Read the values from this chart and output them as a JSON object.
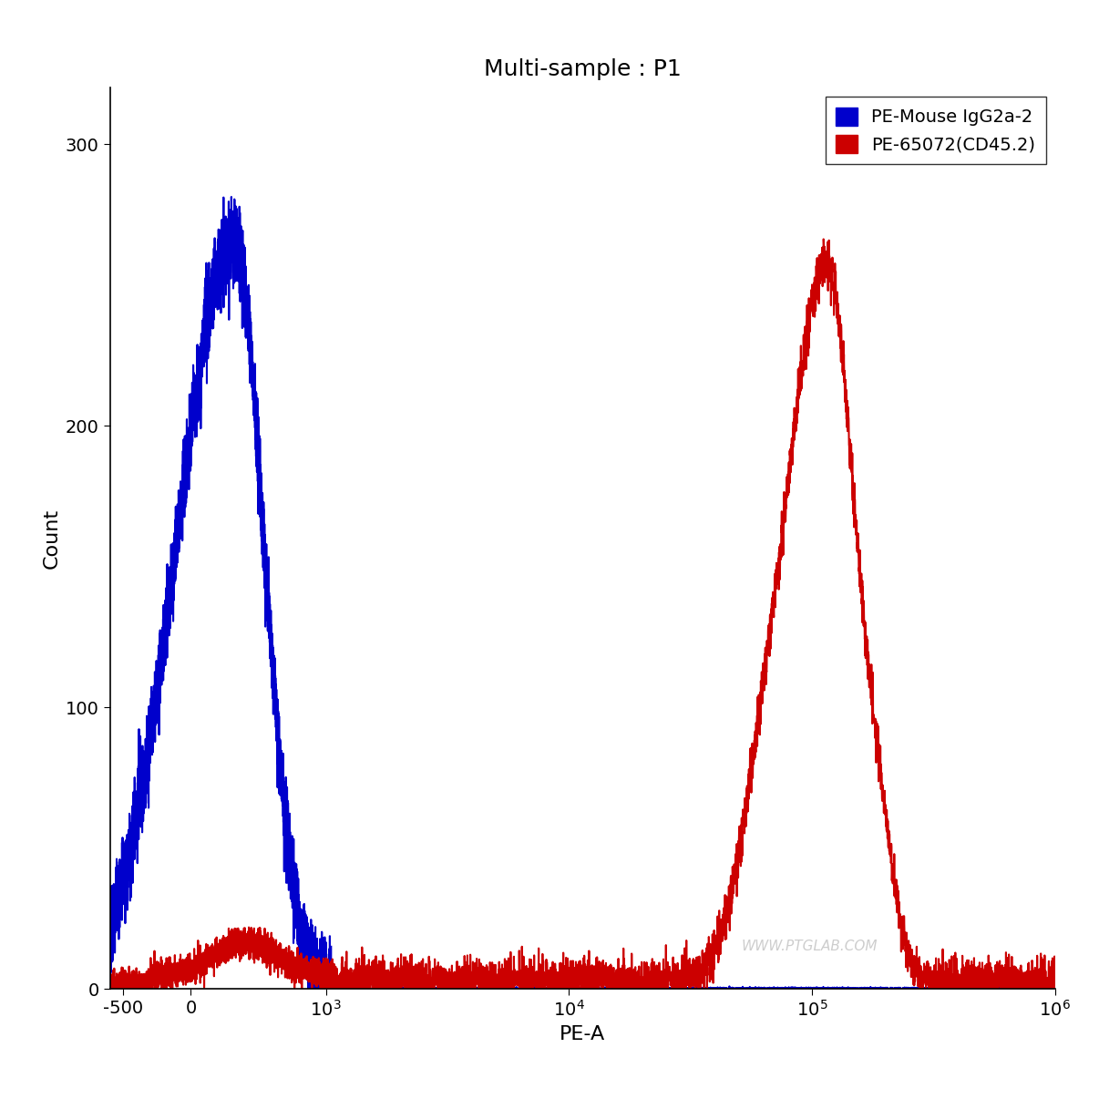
{
  "title": "Multi-sample : P1",
  "xlabel": "PE-A",
  "ylabel": "Count",
  "ylim": [
    0,
    320
  ],
  "yticks": [
    0,
    100,
    200,
    300
  ],
  "background_color": "#ffffff",
  "legend": [
    {
      "label": "PE-Mouse IgG2a-2",
      "color": "#0000cc"
    },
    {
      "label": "PE-65072(CD45.2)",
      "color": "#cc0000"
    }
  ],
  "watermark": "WWW.PTGLAB.COM",
  "title_fontsize": 18,
  "axis_label_fontsize": 16,
  "tick_fontsize": 14,
  "legend_fontsize": 14,
  "line_width": 1.5,
  "linthresh": 1000,
  "linscale": 0.5
}
